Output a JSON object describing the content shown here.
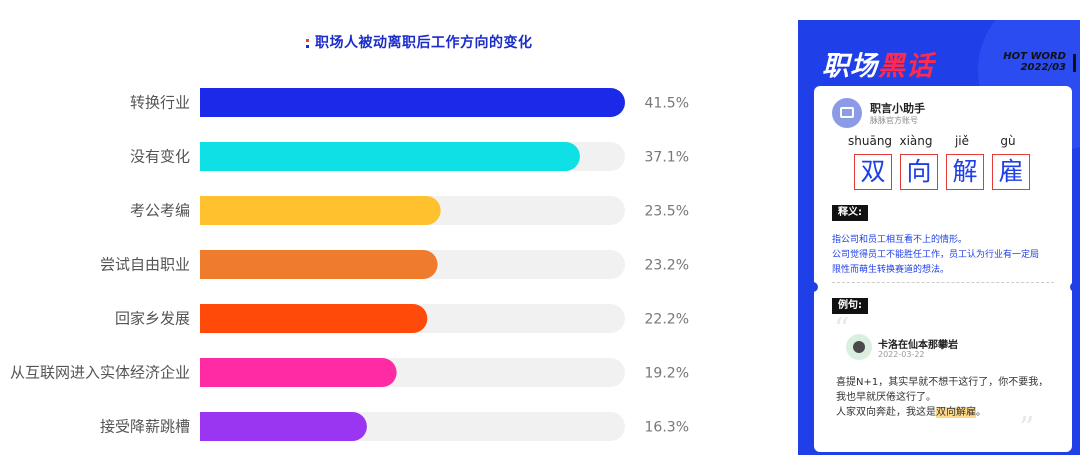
{
  "chart_data": {
    "type": "bar",
    "orientation": "horizontal",
    "title": "职场人被动离职后工作方向的变化",
    "categories": [
      "转换行业",
      "没有变化",
      "考公考编",
      "尝试自由职业",
      "回家乡发展",
      "从互联网进入实体经济企业",
      "接受降薪跳槽"
    ],
    "values": [
      41.5,
      37.1,
      23.5,
      23.2,
      22.2,
      19.2,
      16.3
    ],
    "value_labels": [
      "41.5%",
      "37.1%",
      "23.5%",
      "23.2%",
      "22.2%",
      "19.2%",
      "16.3%"
    ],
    "colors": [
      "#1b2ae8",
      "#0fe0e6",
      "#ffc22e",
      "#ef7b2c",
      "#ff4a0a",
      "#ff2ba5",
      "#9a35f2"
    ],
    "track_color": "#f1f1f1",
    "xlim": [
      0,
      41.5
    ],
    "grid": false,
    "legend": false
  },
  "card": {
    "brand_main": "职场",
    "brand_highlight": "黑话",
    "hot_line1": "HOT WORD",
    "hot_line2": "2022/03",
    "account_name": "职言小助手",
    "account_sub": "脉脉官方账号",
    "pinyin": [
      "shuāng",
      "xiàng",
      "jiě",
      "gù"
    ],
    "chars": [
      "双",
      "向",
      "解",
      "雇"
    ],
    "meaning_tag": "释义:",
    "meaning_lines": [
      "指公司和员工相互看不上的情形。",
      "公司觉得员工不能胜任工作，员工认为行业有一定局",
      "限性而萌生转换赛道的想法。"
    ],
    "example_tag": "例句:",
    "user_name": "卡洛在仙本那攀岩",
    "user_date": "2022-03-22",
    "example_line1": "喜提N+1，其实早就不想干这行了，你不要我，",
    "example_line2": "我也早就厌倦这行了。",
    "example_line3_pre": "人家双向奔赴，我这是",
    "example_line3_hl": "双向解雇",
    "example_line3_post": "。"
  }
}
